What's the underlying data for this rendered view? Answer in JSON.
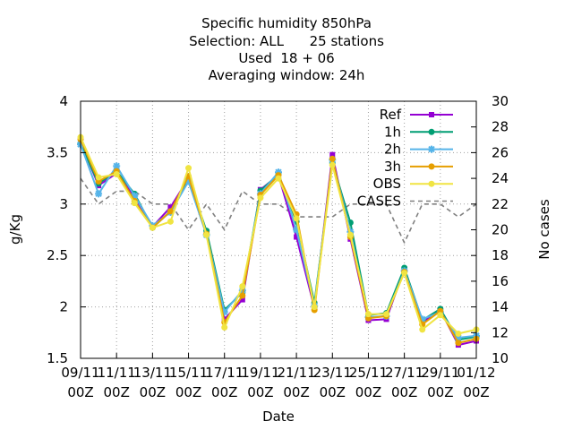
{
  "chart_data": {
    "type": "line",
    "title_lines": [
      "Specific humidity 850hPa",
      "Selection: ALL      25 stations",
      "Used  18 + 06",
      "Averaging window: 24h"
    ],
    "xlabel": "Date",
    "ylabel": "g/Kg",
    "y2label": "No cases",
    "x_tick_labels": [
      [
        "09/11",
        "00Z"
      ],
      [
        "11/11",
        "00Z"
      ],
      [
        "13/11",
        "00Z"
      ],
      [
        "15/11",
        "00Z"
      ],
      [
        "17/11",
        "00Z"
      ],
      [
        "19/11",
        "00Z"
      ],
      [
        "21/11",
        "00Z"
      ],
      [
        "23/11",
        "00Z"
      ],
      [
        "25/11",
        "00Z"
      ],
      [
        "27/11",
        "00Z"
      ],
      [
        "29/11",
        "00Z"
      ],
      [
        "01/12",
        "00Z"
      ]
    ],
    "y_ticks": [
      "1.5",
      "2",
      "2.5",
      "3",
      "3.5",
      "4"
    ],
    "y2_ticks": [
      "10",
      "12",
      "14",
      "16",
      "18",
      "20",
      "22",
      "24",
      "26",
      "28",
      "30"
    ],
    "ylim": [
      1.5,
      4.0
    ],
    "y2lim": [
      10,
      30
    ],
    "xlim": [
      0,
      22
    ],
    "grid": true,
    "legend_position": "top-right",
    "series": [
      {
        "name": "Ref",
        "color": "#9400d3",
        "marker": "square",
        "x": [
          0,
          1,
          2,
          3,
          4,
          5,
          6,
          7,
          8,
          9,
          10,
          11,
          12,
          13,
          14,
          15,
          16,
          17,
          18,
          19,
          20,
          21,
          22
        ],
        "values": [
          3.6,
          3.18,
          3.3,
          3.07,
          2.78,
          2.97,
          3.25,
          2.72,
          1.88,
          2.07,
          3.14,
          3.28,
          2.68,
          1.99,
          3.48,
          2.66,
          1.87,
          1.88,
          2.37,
          1.85,
          1.97,
          1.63,
          1.67
        ]
      },
      {
        "name": "1h",
        "color": "#009e73",
        "marker": "circle",
        "x": [
          0,
          1,
          2,
          3,
          4,
          5,
          6,
          7,
          8,
          9,
          10,
          11,
          12,
          13,
          14,
          15,
          16,
          17,
          18,
          19,
          20,
          21,
          22
        ],
        "values": [
          3.59,
          3.2,
          3.32,
          3.1,
          2.77,
          2.93,
          3.25,
          2.74,
          1.97,
          2.14,
          3.13,
          3.29,
          2.83,
          2.04,
          3.4,
          2.82,
          1.92,
          1.94,
          2.38,
          1.87,
          1.98,
          1.68,
          1.71
        ]
      },
      {
        "name": "2h",
        "color": "#56b4e9",
        "marker": "star",
        "x": [
          0,
          1,
          2,
          3,
          4,
          5,
          6,
          7,
          8,
          9,
          10,
          11,
          12,
          13,
          14,
          15,
          16,
          17,
          18,
          19,
          20,
          21,
          22
        ],
        "values": [
          3.58,
          3.1,
          3.37,
          3.08,
          2.79,
          2.92,
          3.22,
          2.7,
          1.95,
          2.16,
          3.1,
          3.31,
          2.75,
          2.01,
          3.43,
          2.73,
          1.9,
          1.91,
          2.35,
          1.88,
          1.95,
          1.7,
          1.72
        ]
      },
      {
        "name": "3h",
        "color": "#e69f00",
        "marker": "circle",
        "x": [
          0,
          1,
          2,
          3,
          4,
          5,
          6,
          7,
          8,
          9,
          10,
          11,
          12,
          13,
          14,
          15,
          16,
          17,
          18,
          19,
          20,
          21,
          22
        ],
        "values": [
          3.63,
          3.22,
          3.32,
          3.03,
          2.77,
          2.93,
          3.27,
          2.71,
          1.85,
          2.11,
          3.09,
          3.28,
          2.9,
          1.97,
          3.44,
          2.68,
          1.89,
          1.91,
          2.34,
          1.83,
          1.96,
          1.65,
          1.69
        ]
      },
      {
        "name": "OBS",
        "color": "#f0e442",
        "marker": "circle",
        "x": [
          0,
          1,
          2,
          3,
          4,
          5,
          6,
          7,
          8,
          9,
          10,
          11,
          12,
          13,
          14,
          15,
          16,
          17,
          18,
          19,
          20,
          21,
          22
        ],
        "values": [
          3.65,
          3.26,
          3.29,
          3.01,
          2.77,
          2.83,
          3.35,
          2.7,
          1.8,
          2.2,
          3.06,
          3.25,
          2.86,
          2.0,
          3.38,
          2.7,
          1.93,
          1.93,
          2.33,
          1.78,
          1.92,
          1.74,
          1.78
        ]
      },
      {
        "name": "CASES",
        "color": "#808080",
        "dash": true,
        "axis": "y2",
        "x": [
          0,
          1,
          2,
          3,
          4,
          5,
          6,
          7,
          8,
          9,
          10,
          11,
          12,
          13,
          14,
          15,
          16,
          17,
          18,
          19,
          20,
          21,
          22
        ],
        "values": [
          24,
          22,
          23,
          23,
          22,
          22,
          20,
          22,
          20,
          23,
          22,
          22,
          21,
          21,
          21,
          22,
          22,
          22,
          19,
          22,
          22,
          21,
          22
        ]
      }
    ]
  }
}
